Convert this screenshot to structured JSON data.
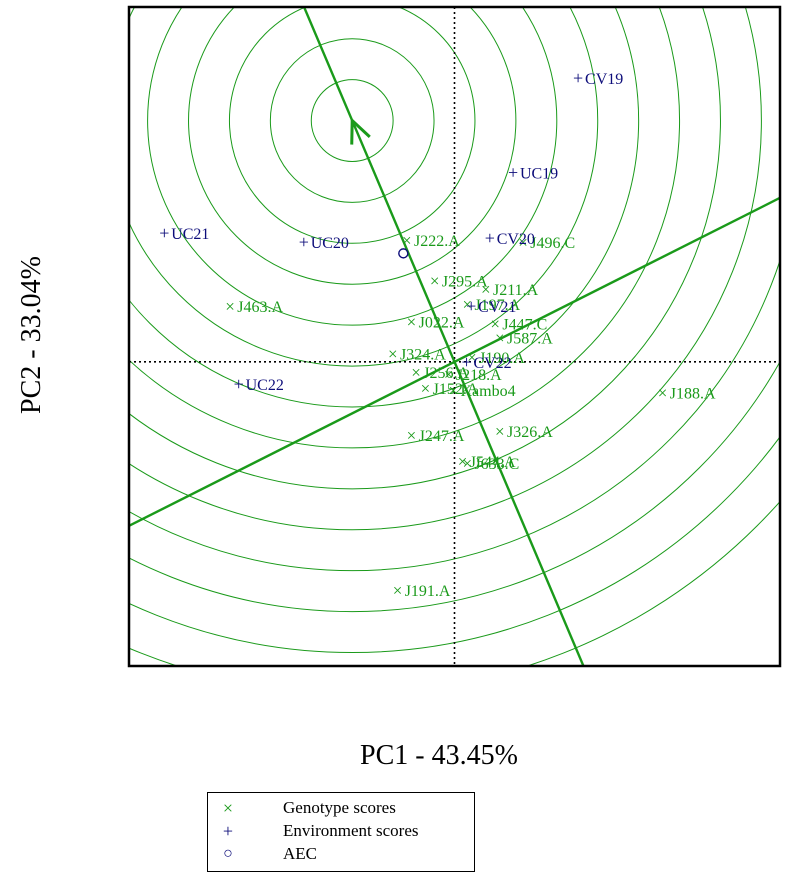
{
  "chart_data": {
    "type": "scatter",
    "title": "",
    "xlabel": "PC1 - 43.45%",
    "ylabel": "PC2 - 33.04%",
    "xlim": [
      -3.5,
      3.5
    ],
    "ylim": [
      -3.0,
      3.5
    ],
    "grid": false,
    "colors": {
      "genotype": "#1a9a1a",
      "environment": "#0d0d7a",
      "axes": "#000000",
      "aec": "#1a9a1a"
    },
    "genotypes": [
      {
        "label": "J222.A",
        "x": -0.5,
        "y": 1.2
      },
      {
        "label": "J496.C",
        "x": 0.75,
        "y": 1.18
      },
      {
        "label": "J295.A",
        "x": -0.2,
        "y": 0.8
      },
      {
        "label": "J211.A",
        "x": 0.35,
        "y": 0.72
      },
      {
        "label": "J463.A",
        "x": -2.4,
        "y": 0.55
      },
      {
        "label": "J197.A",
        "x": 0.15,
        "y": 0.57
      },
      {
        "label": "J022.A",
        "x": -0.45,
        "y": 0.4
      },
      {
        "label": "J447.C",
        "x": 0.45,
        "y": 0.38
      },
      {
        "label": "J587.A",
        "x": 0.5,
        "y": 0.24
      },
      {
        "label": "J324.A",
        "x": -0.65,
        "y": 0.08
      },
      {
        "label": "J190.A",
        "x": 0.2,
        "y": 0.05
      },
      {
        "label": "J218.A",
        "x": -0.05,
        "y": -0.12
      },
      {
        "label": "J256.A",
        "x": -0.4,
        "y": -0.1
      },
      {
        "label": "J152.A",
        "x": -0.3,
        "y": -0.26
      },
      {
        "label": "Kambo4",
        "x": 0.0,
        "y": -0.28
      },
      {
        "label": "J188.A",
        "x": 2.25,
        "y": -0.3
      },
      {
        "label": "J326.A",
        "x": 0.5,
        "y": -0.68
      },
      {
        "label": "J247.A",
        "x": -0.45,
        "y": -0.72
      },
      {
        "label": "J544.A",
        "x": 0.1,
        "y": -0.98
      },
      {
        "label": "J633.C",
        "x": 0.15,
        "y": -1.0
      },
      {
        "label": "J191.A",
        "x": -0.6,
        "y": -2.25
      }
    ],
    "environments": [
      {
        "label": "CV19",
        "x": 1.35,
        "y": 2.8
      },
      {
        "label": "UC19",
        "x": 0.65,
        "y": 1.87
      },
      {
        "label": "UC21",
        "x": -3.1,
        "y": 1.27
      },
      {
        "label": "UC20",
        "x": -1.6,
        "y": 1.18
      },
      {
        "label": "CV20",
        "x": 0.4,
        "y": 1.22
      },
      {
        "label": "CV21",
        "x": 0.2,
        "y": 0.55
      },
      {
        "label": "CV22",
        "x": 0.15,
        "y": 0.0
      },
      {
        "label": "UC22",
        "x": -2.3,
        "y": -0.22
      }
    ],
    "aec_point": {
      "x": -0.55,
      "y": 1.07
    },
    "aec_axis": {
      "slope": -2.36,
      "arrow_target": {
        "x": -1.1,
        "y": 2.38
      }
    },
    "ideal_point": {
      "x": -1.1,
      "y": 2.38
    },
    "circle_spacing": 0.44,
    "circle_count": 14,
    "legend": {
      "placement": "bottom",
      "items": [
        {
          "symbol": "×",
          "label": "Genotype scores",
          "color": "#1a9a1a"
        },
        {
          "symbol": "+",
          "label": "Environment scores",
          "color": "#0d0d7a"
        },
        {
          "symbol": "○",
          "label": "AEC",
          "color": "#0d0d7a"
        }
      ]
    }
  }
}
